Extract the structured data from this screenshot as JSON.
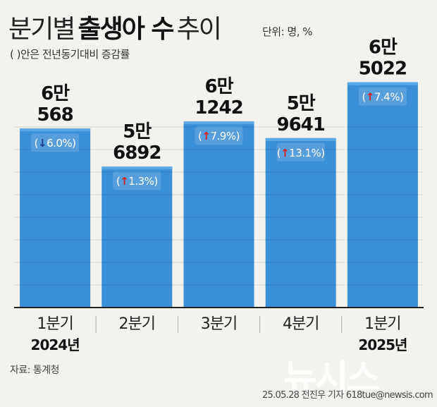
{
  "header": {
    "title_part1": "분기별",
    "title_bold": "출생아 수",
    "title_part2": "추이",
    "unit": "단위: 명, %",
    "subtitle": "( )안은 전년동기대비 증감률"
  },
  "chart_data": {
    "type": "bar",
    "categories": [
      "1분기 2024년",
      "2분기",
      "3분기",
      "4분기",
      "1분기 2025년"
    ],
    "category_lines": [
      [
        "1분기",
        "2024년"
      ],
      [
        "2분기"
      ],
      [
        "3분기"
      ],
      [
        "4분기"
      ],
      [
        "1분기",
        "2025년"
      ]
    ],
    "values": [
      60568,
      56892,
      61242,
      59641,
      65022
    ],
    "value_labels": [
      [
        "6만",
        "568"
      ],
      [
        "5만",
        "6892"
      ],
      [
        "6만",
        "1242"
      ],
      [
        "5만",
        "9641"
      ],
      [
        "6만",
        "5022"
      ]
    ],
    "changes": [
      "6.0%",
      "1.3%",
      "7.9%",
      "13.1%",
      "7.4%"
    ],
    "change_directions": [
      "down",
      "up",
      "up",
      "up",
      "up"
    ],
    "bar_color": "#3a8fd6",
    "bar_top_color": "#5aa9e6",
    "up_color": "#d62020",
    "down_color": "#1a3c8c"
  },
  "footer": {
    "source": "자료: 통계청",
    "credit": "25.05.28 전진우 기자 618tue@newsis.com",
    "watermark": "뉴시스"
  }
}
